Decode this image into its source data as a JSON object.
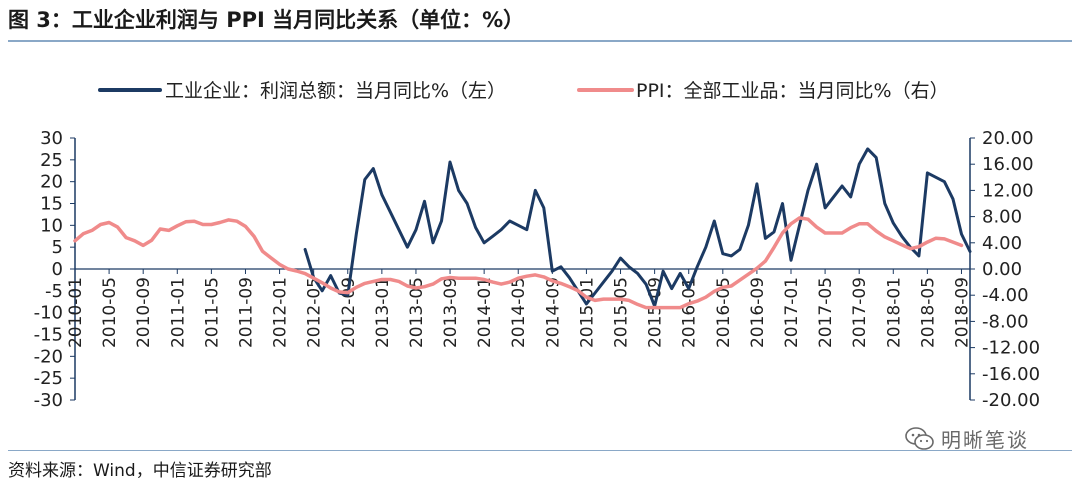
{
  "header": {
    "title": "图 3：工业企业利润与 PPI 当月同比关系（单位：%）"
  },
  "footer": {
    "source": "资料来源：Wind，中信证券研究部"
  },
  "watermark": {
    "text": "明晰笔谈",
    "icon": "wechat-icon"
  },
  "colors": {
    "profit": "#1c3a63",
    "ppi": "#f08b8b",
    "axis": "#1c3a63",
    "rule": "#8aa8c7"
  },
  "chart_data": {
    "type": "line",
    "title": "图 3：工业企业利润与 PPI 当月同比关系（单位：%）",
    "legend_position": "top",
    "x_ticks": [
      "2010-01",
      "2010-05",
      "2010-09",
      "2011-01",
      "2011-05",
      "2011-09",
      "2012-01",
      "2012-05",
      "2012-09",
      "2013-01",
      "2013-05",
      "2013-09",
      "2014-01",
      "2014-05",
      "2014-09",
      "2015-01",
      "2015-05",
      "2015-09",
      "2016-01",
      "2016-05",
      "2016-09",
      "2017-01",
      "2017-05",
      "2017-09",
      "2018-01",
      "2018-05",
      "2018-09"
    ],
    "y_left": {
      "min": -30,
      "max": 30,
      "step": 5,
      "ticks": [
        "30",
        "25",
        "20",
        "15",
        "10",
        "5",
        "0",
        "-5",
        "-10",
        "-15",
        "-20",
        "-25",
        "-30"
      ]
    },
    "y_right": {
      "min": -20,
      "max": 20,
      "step": 4,
      "ticks": [
        "20.00",
        "16.00",
        "12.00",
        "8.00",
        "4.00",
        "0.00",
        "-4.00",
        "-8.00",
        "-12.00",
        "-16.00",
        "-20.00"
      ]
    },
    "series": [
      {
        "name": "工业企业：利润总额：当月同比%（左）",
        "axis": "left",
        "start_month_index": 27,
        "values": [
          4.5,
          -2,
          -5,
          -1.5,
          -5.5,
          -6,
          8,
          20.5,
          23,
          17,
          13,
          9,
          5,
          9,
          15.5,
          6,
          11,
          24.5,
          18,
          15,
          9.5,
          6,
          7.5,
          9,
          11,
          10,
          9,
          18,
          14,
          -0.5,
          0.5,
          -2,
          -5,
          -8,
          -5.5,
          -3,
          -0.5,
          2.5,
          0.5,
          -1,
          -3.5,
          -8.5,
          -0.5,
          -4.5,
          -1,
          -4.5,
          0.5,
          5,
          11,
          3.5,
          3,
          4.5,
          10,
          19.5,
          7,
          8.5,
          15,
          2,
          10,
          18,
          24,
          14,
          16.5,
          19,
          16.5,
          24,
          27.5,
          25.5,
          15,
          10.5,
          7.5,
          5,
          3,
          22,
          21,
          20,
          16,
          8,
          4
        ]
      },
      {
        "name": "PPI：全部工业品：当月同比%（右）",
        "axis": "right",
        "start_month_index": 0,
        "values": [
          4.3,
          5.4,
          5.9,
          6.8,
          7.1,
          6.4,
          4.8,
          4.3,
          3.6,
          4.4,
          6.1,
          5.9,
          6.6,
          7.2,
          7.3,
          6.8,
          6.8,
          7.1,
          7.5,
          7.3,
          6.5,
          5.0,
          2.7,
          1.7,
          0.7,
          0.0,
          -0.3,
          -0.7,
          -1.4,
          -2.1,
          -2.9,
          -3.5,
          -3.6,
          -2.8,
          -2.2,
          -1.9,
          -1.6,
          -1.6,
          -1.9,
          -2.6,
          -2.9,
          -2.7,
          -2.3,
          -1.5,
          -1.3,
          -1.4,
          -1.4,
          -1.4,
          -1.6,
          -2.0,
          -2.3,
          -2.0,
          -1.4,
          -1.1,
          -0.9,
          -1.2,
          -1.8,
          -2.2,
          -2.7,
          -3.3,
          -4.3,
          -4.8,
          -4.6,
          -4.6,
          -4.6,
          -4.8,
          -5.4,
          -5.9,
          -5.9,
          -5.9,
          -5.9,
          -5.9,
          -5.3,
          -4.9,
          -4.3,
          -3.4,
          -2.8,
          -2.6,
          -1.7,
          -0.8,
          0.1,
          1.2,
          3.3,
          5.5,
          6.9,
          7.8,
          7.6,
          6.4,
          5.5,
          5.5,
          5.5,
          6.3,
          6.9,
          6.9,
          5.8,
          4.9,
          4.3,
          3.7,
          3.1,
          3.4,
          4.1,
          4.7,
          4.6,
          4.1,
          3.6
        ]
      }
    ],
    "legend": [
      "工业企业：利润总额：当月同比%（左）",
      "PPI：全部工业品：当月同比%（右）"
    ]
  }
}
